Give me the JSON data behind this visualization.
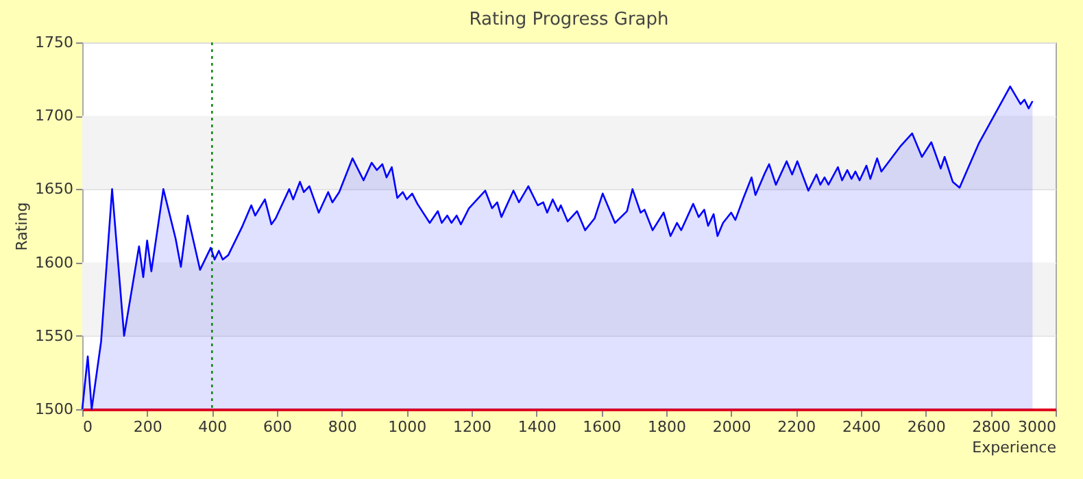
{
  "chart_data": {
    "type": "area",
    "title": "Rating Progress Graph",
    "xlabel": "Experience",
    "ylabel": "Rating",
    "x": [
      0,
      17,
      29,
      58,
      92,
      129,
      175,
      188,
      200,
      213,
      250,
      288,
      304,
      325,
      363,
      396,
      408,
      421,
      433,
      450,
      492,
      521,
      533,
      563,
      583,
      596,
      638,
      650,
      671,
      683,
      700,
      729,
      758,
      771,
      792,
      833,
      867,
      892,
      908,
      925,
      938,
      954,
      971,
      988,
      1000,
      1017,
      1033,
      1071,
      1096,
      1108,
      1125,
      1138,
      1154,
      1167,
      1192,
      1242,
      1263,
      1279,
      1292,
      1329,
      1346,
      1375,
      1404,
      1421,
      1433,
      1450,
      1467,
      1475,
      1496,
      1525,
      1550,
      1579,
      1604,
      1642,
      1679,
      1696,
      1721,
      1733,
      1758,
      1792,
      1813,
      1833,
      1846,
      1883,
      1900,
      1917,
      1929,
      1946,
      1958,
      1975,
      2000,
      2013,
      2038,
      2063,
      2075,
      2104,
      2117,
      2138,
      2171,
      2188,
      2204,
      2238,
      2263,
      2275,
      2288,
      2300,
      2329,
      2342,
      2358,
      2371,
      2383,
      2396,
      2417,
      2429,
      2450,
      2463,
      2521,
      2558,
      2588,
      2617,
      2646,
      2658,
      2683,
      2704,
      2763,
      2860,
      2892,
      2904,
      2917,
      2929
    ],
    "series": [
      {
        "color": "#0000ff",
        "values": [
          1500,
          1536,
          1500,
          1546,
          1650,
          1550,
          1611,
          1590,
          1615,
          1594,
          1650,
          1616,
          1597,
          1632,
          1595,
          1610,
          1602,
          1608,
          1602,
          1605,
          1624,
          1639,
          1632,
          1643,
          1626,
          1630,
          1650,
          1643,
          1655,
          1648,
          1652,
          1634,
          1648,
          1641,
          1648,
          1671,
          1656,
          1668,
          1663,
          1667,
          1658,
          1665,
          1644,
          1648,
          1643,
          1647,
          1640,
          1627,
          1635,
          1627,
          1632,
          1627,
          1632,
          1626,
          1637,
          1649,
          1637,
          1641,
          1631,
          1649,
          1641,
          1652,
          1639,
          1641,
          1634,
          1643,
          1635,
          1639,
          1628,
          1635,
          1622,
          1630,
          1647,
          1627,
          1635,
          1650,
          1634,
          1636,
          1622,
          1634,
          1618,
          1627,
          1622,
          1640,
          1631,
          1636,
          1625,
          1633,
          1618,
          1627,
          1634,
          1629,
          1644,
          1658,
          1646,
          1661,
          1667,
          1653,
          1669,
          1660,
          1669,
          1649,
          1660,
          1653,
          1658,
          1653,
          1665,
          1656,
          1663,
          1657,
          1662,
          1656,
          1666,
          1657,
          1671,
          1662,
          1679,
          1688,
          1672,
          1682,
          1664,
          1672,
          1655,
          1651,
          1681,
          1720,
          1708,
          1711,
          1705,
          1710
        ]
      }
    ],
    "xlim": [
      0,
      3000
    ],
    "xticks": [
      0,
      200,
      400,
      600,
      800,
      1000,
      1200,
      1400,
      1600,
      1800,
      2000,
      2200,
      2400,
      2600,
      2800,
      3000
    ],
    "ylim": [
      1500,
      1750
    ],
    "yticks": [
      1500,
      1550,
      1600,
      1650,
      1700,
      1750
    ],
    "grid": "y",
    "ref_lines": [
      {
        "axis": "x",
        "value": 400,
        "color": "#008000",
        "line_style": "dotted"
      }
    ],
    "bands": [
      {
        "axis": "y",
        "from": 1550,
        "to": 1600,
        "color": "#f3f3f3"
      },
      {
        "axis": "y",
        "from": 1650,
        "to": 1700,
        "color": "#f3f3f3"
      }
    ]
  }
}
